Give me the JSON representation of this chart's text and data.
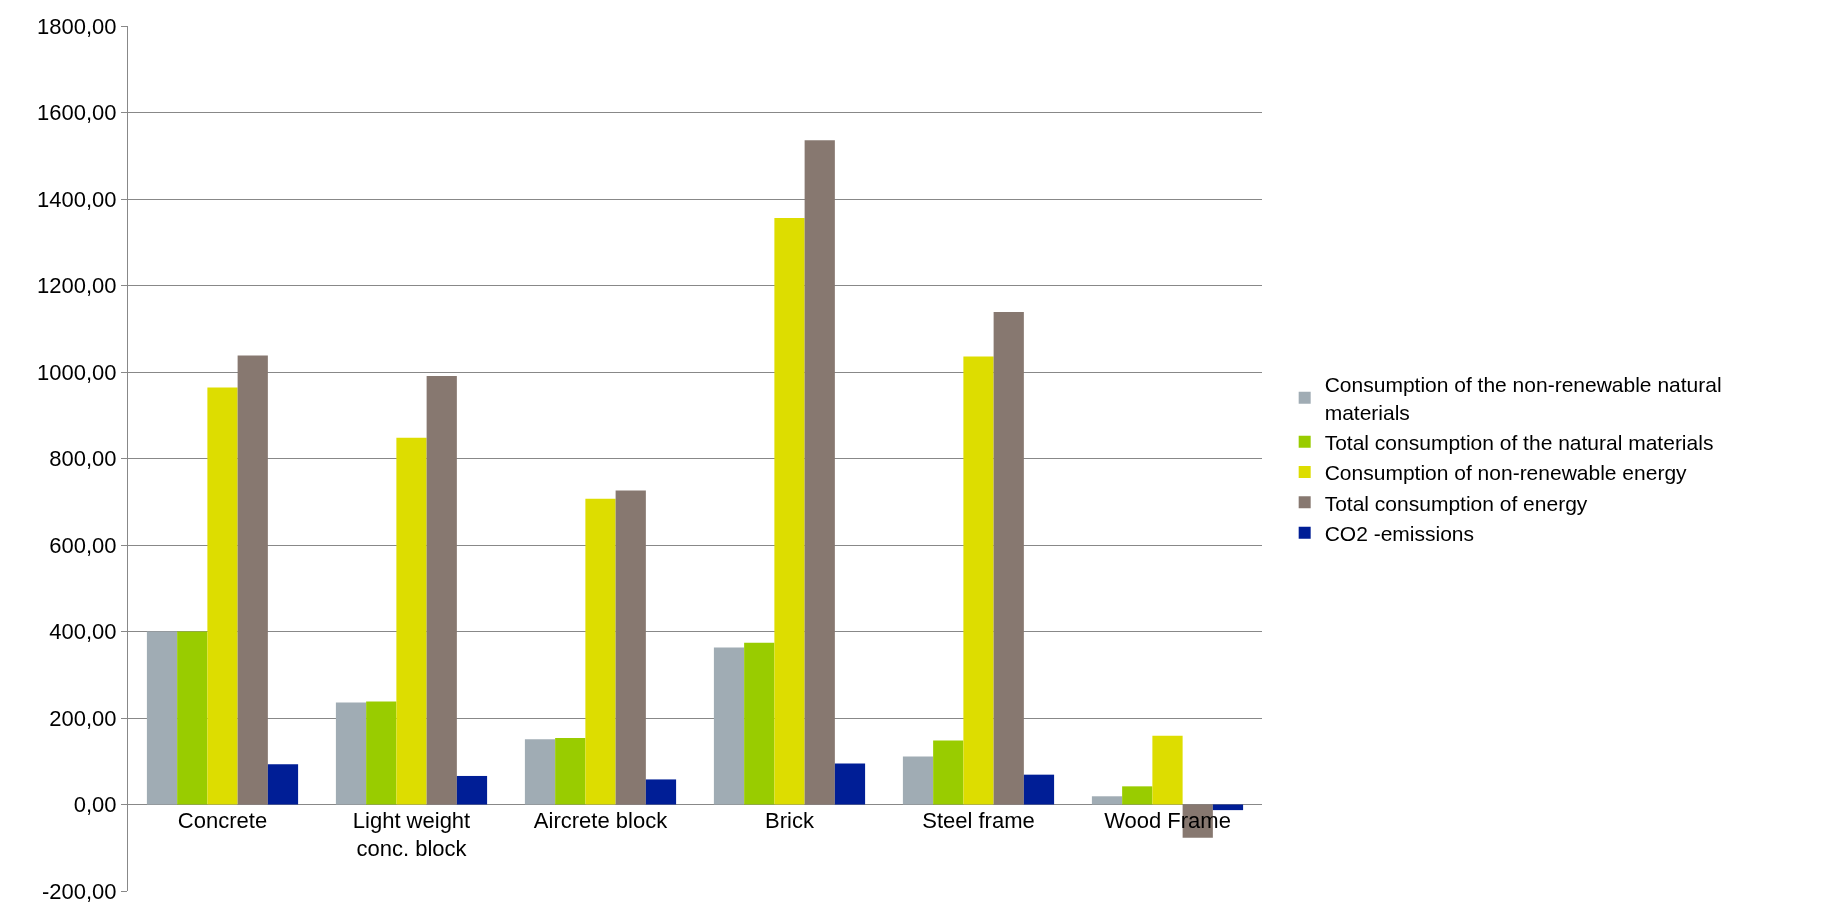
{
  "chart_data": {
    "type": "bar",
    "categories": [
      "Concrete",
      "Light weight conc. block",
      "Aircrete block",
      "Brick",
      "Steel frame",
      "Wood Frame"
    ],
    "series": [
      {
        "name": "Consumption of the non-renewable natural materials",
        "color": "#a0acb4",
        "values": [
          400,
          236,
          151,
          363,
          111,
          19
        ]
      },
      {
        "name": "Total consumption of the natural materials",
        "color": "#99cc00",
        "values": [
          400,
          238,
          154,
          374,
          148,
          42
        ]
      },
      {
        "name": "Consumption of non-renewable energy",
        "color": "#dddd00",
        "values": [
          964,
          848,
          707,
          1356,
          1036,
          159
        ]
      },
      {
        "name": "Total consumption of energy",
        "color": "#877870",
        "values": [
          1038,
          991,
          726,
          1536,
          1139,
          -77
        ]
      },
      {
        "name": "CO2 -emissions",
        "color": "#001e96",
        "values": [
          93,
          66,
          58,
          95,
          69,
          -13
        ]
      }
    ],
    "ylim": [
      -200,
      1800
    ],
    "yticks": [
      {
        "value": -200,
        "label": "-200,00"
      },
      {
        "value": 0,
        "label": "0,00"
      },
      {
        "value": 200,
        "label": "200,00"
      },
      {
        "value": 400,
        "label": "400,00"
      },
      {
        "value": 600,
        "label": "600,00"
      },
      {
        "value": 800,
        "label": "800,00"
      },
      {
        "value": 1000,
        "label": "1000,00"
      },
      {
        "value": 1200,
        "label": "1200,00"
      },
      {
        "value": 1400,
        "label": "1400,00"
      },
      {
        "value": 1600,
        "label": "1600,00"
      },
      {
        "value": 1800,
        "label": "1800,00"
      }
    ],
    "grid": "y",
    "legend": "right"
  }
}
